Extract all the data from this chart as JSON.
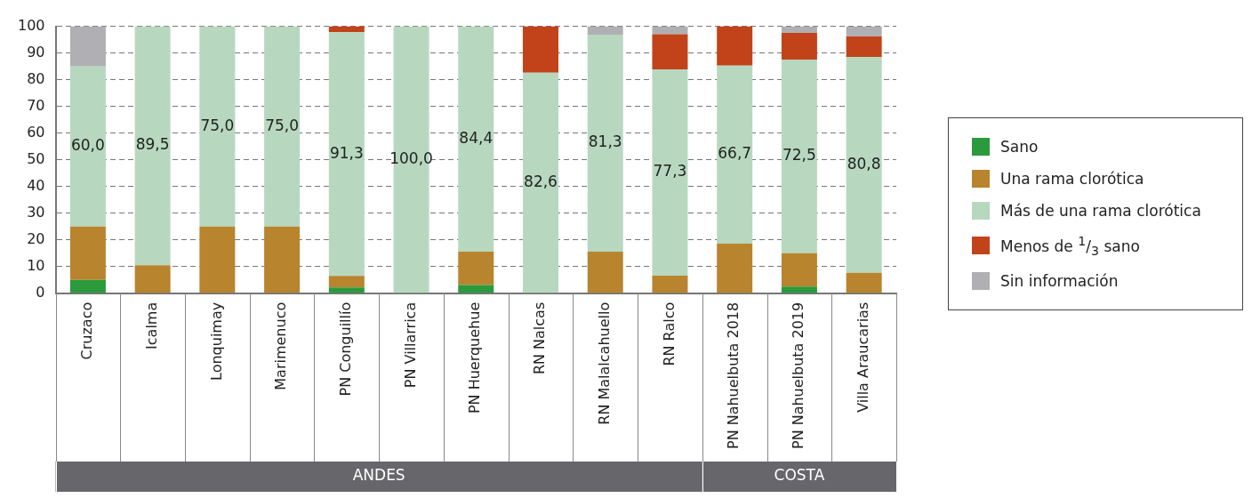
{
  "chart_data": {
    "type": "bar",
    "stacked": true,
    "categories": [
      "Cruzaco",
      "Icalma",
      "Lonquimay",
      "Marimenuco",
      "PN Conguillío",
      "PN Villarrica",
      "PN Huerquehue",
      "RN Nalcas",
      "RN Malalcahuello",
      "RN Ralco",
      "PN Nahuelbuta 2018",
      "PN Nahuelbuta 2019",
      "Villa Araucarias"
    ],
    "series": [
      {
        "name": "Sano",
        "color": "#2a9a3c",
        "values": [
          5,
          0,
          0,
          0,
          2.2,
          0,
          3.1,
          0,
          0,
          0,
          0,
          2.5,
          0
        ]
      },
      {
        "name": "Una rama clorótica",
        "color": "#b8842e",
        "values": [
          20,
          10.5,
          25,
          25,
          4.3,
          0,
          12.5,
          0,
          15.6,
          6.6,
          18.6,
          12.5,
          7.7
        ]
      },
      {
        "name": "Más de una rama clorótica",
        "color": "#b7d8bf",
        "values": [
          60,
          89.5,
          75,
          75,
          91.3,
          100,
          84.4,
          82.6,
          81.3,
          77.3,
          66.7,
          72.5,
          80.8
        ],
        "value_labels": [
          "60,0",
          "89,5",
          "75,0",
          "75,0",
          "91,3",
          "100,0",
          "84,4",
          "82,6",
          "81,3",
          "77,3",
          "66,7",
          "72,5",
          "80,8"
        ]
      },
      {
        "name": "Menos de $^{1}$/$_{3}$ sano",
        "color": "#c24319",
        "values": [
          0,
          0,
          0,
          0,
          2.2,
          0,
          0,
          17.4,
          0,
          13.1,
          14.7,
          10,
          7.7
        ]
      },
      {
        "name": "Sin información",
        "color": "#b0b0b4",
        "values": [
          15,
          0,
          0,
          0,
          0,
          0,
          0,
          0,
          3.1,
          3,
          0,
          2.5,
          3.8
        ]
      }
    ],
    "ylim": [
      0,
      100
    ],
    "yticks": [
      0,
      10,
      20,
      30,
      40,
      50,
      60,
      70,
      80,
      90,
      100
    ],
    "grid": "y",
    "legend": "right",
    "annotations": [
      "ANDES",
      "COSTA"
    ]
  }
}
